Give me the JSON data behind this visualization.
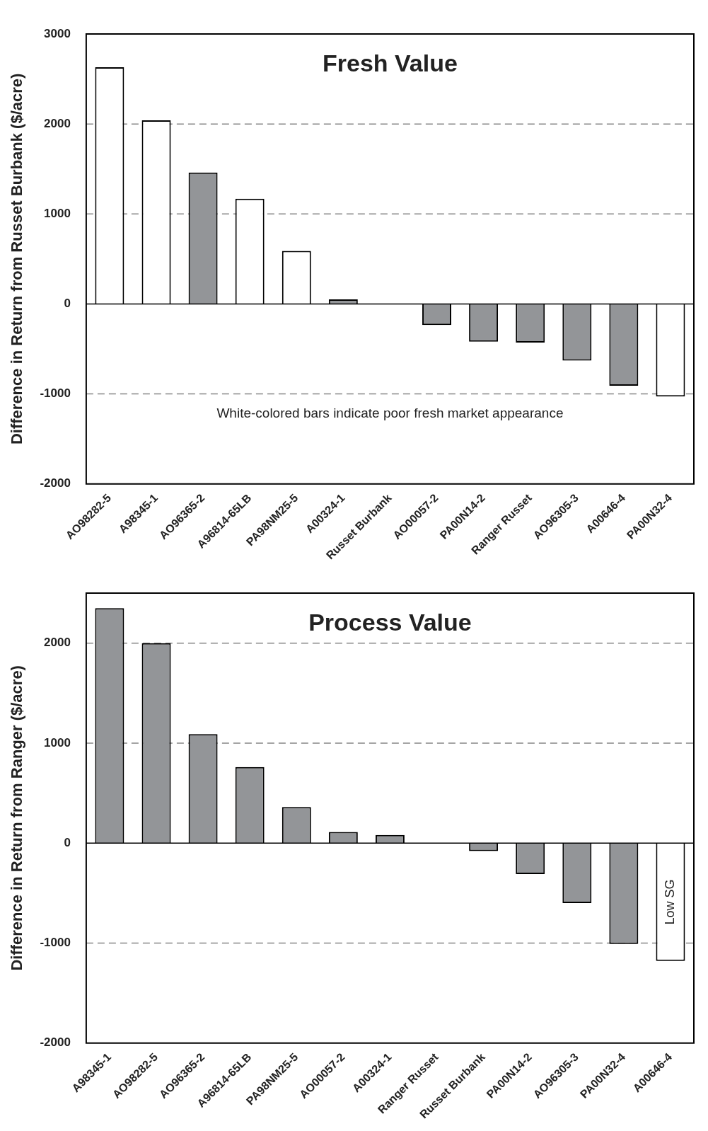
{
  "chart_data": [
    {
      "type": "bar",
      "title": "Fresh Value",
      "ylabel": "Difference in Return from Russet Burbank ($/acre)",
      "categories": [
        "AO98282-5",
        "A98345-1",
        "AO96365-2",
        "A96814-65LB",
        "PA98NM25-5",
        "A00324-1",
        "Russet Burbank",
        "AO00057-2",
        "PA00N14-2",
        "Ranger Russet",
        "AO96305-3",
        "A00646-4",
        "PA00N32-4"
      ],
      "values": [
        2630,
        2040,
        1460,
        1170,
        590,
        50,
        0,
        -235,
        -420,
        -430,
        -630,
        -910,
        -1030
      ],
      "colors": [
        "#ffffff",
        "#ffffff",
        "#939598",
        "#ffffff",
        "#ffffff",
        "#939598",
        "#939598",
        "#939598",
        "#939598",
        "#939598",
        "#939598",
        "#939598",
        "#ffffff"
      ],
      "ylim": [
        -2000,
        3000
      ],
      "yticks": [
        -2000,
        -1000,
        0,
        1000,
        2000,
        3000
      ],
      "grid": "y",
      "legend": false,
      "ref_lines": [
        {
          "axis": "y",
          "value": 0,
          "line_style": "solid",
          "color": "#000000"
        }
      ],
      "annotations": [
        "White-colored bars indicate poor fresh market appearance"
      ]
    },
    {
      "type": "bar",
      "title": "Process Value",
      "ylabel": "Difference in Return from Ranger ($/acre)",
      "categories": [
        "A98345-1",
        "AO98282-5",
        "AO96365-2",
        "A96814-65LB",
        "PA98NM25-5",
        "AO00057-2",
        "A00324-1",
        "Ranger Russet",
        "Russet Burbank",
        "PA00N14-2",
        "AO96305-3",
        "PA00N32-4",
        "A00646-4"
      ],
      "values": [
        2350,
        2000,
        1090,
        760,
        360,
        110,
        80,
        0,
        -80,
        -310,
        -600,
        -1010,
        -1180
      ],
      "colors": [
        "#939598",
        "#939598",
        "#939598",
        "#939598",
        "#939598",
        "#939598",
        "#939598",
        "#939598",
        "#939598",
        "#939598",
        "#939598",
        "#939598",
        "#ffffff"
      ],
      "ylim": [
        -2000,
        2500
      ],
      "yticks": [
        -2000,
        -1000,
        0,
        1000,
        2000
      ],
      "grid": "y",
      "legend": false,
      "ref_lines": [
        {
          "axis": "y",
          "value": 0,
          "line_style": "solid",
          "color": "#000000"
        }
      ],
      "annotations": [
        {
          "text": "Low SG",
          "x": "A00646-4",
          "y": -1180
        }
      ]
    }
  ]
}
